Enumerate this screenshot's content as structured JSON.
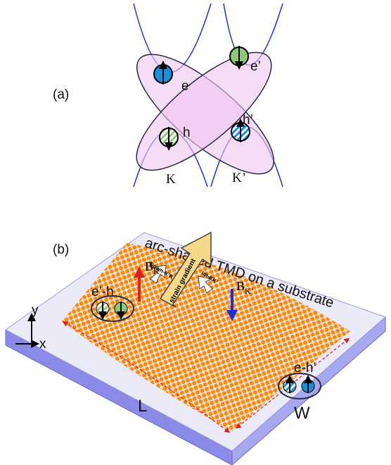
{
  "panel_a": {
    "label": "(a)",
    "particles": [
      "e",
      "e’",
      "h",
      "h’"
    ],
    "valleys": [
      "K",
      "K’"
    ]
  },
  "panel_b": {
    "label": "(b)",
    "title": "arc-shaped TMD on a substrate",
    "pairs": [
      "e’-h",
      "e-h’"
    ],
    "fields": [
      {
        "symbol": "B",
        "subscript": "K"
      },
      {
        "symbol": "B",
        "subscript": "K’"
      }
    ],
    "arrows": {
      "center": "strain gradient",
      "left": "Down-K’K",
      "right": "up-KK’"
    },
    "axes": [
      "y",
      "x"
    ],
    "dimensions": [
      "L",
      "W"
    ]
  }
}
